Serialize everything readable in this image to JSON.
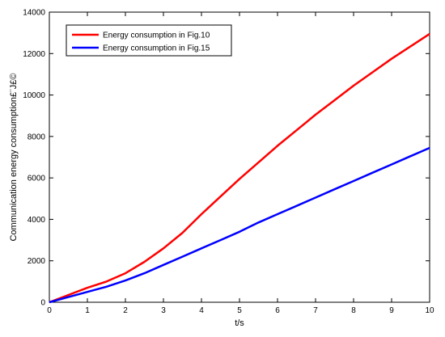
{
  "chart_data": {
    "type": "line",
    "title": "",
    "xlabel": "t/s",
    "ylabel": "Communication energy consumption£¨J£©",
    "xlim": [
      0,
      10
    ],
    "ylim": [
      0,
      14000
    ],
    "xticks": [
      0,
      1,
      2,
      3,
      4,
      5,
      6,
      7,
      8,
      9,
      10
    ],
    "yticks": [
      0,
      2000,
      4000,
      6000,
      8000,
      10000,
      12000,
      14000
    ],
    "grid": false,
    "legend_position": "top-left",
    "series": [
      {
        "name": "Energy consumption in Fig.10",
        "color": "#ff0000",
        "x": [
          0,
          0.5,
          1,
          1.5,
          2,
          2.5,
          3,
          3.5,
          4,
          4.5,
          5,
          5.5,
          6,
          6.5,
          7,
          7.5,
          8,
          8.5,
          9,
          9.5,
          10
        ],
        "y": [
          0,
          350,
          700,
          1000,
          1400,
          1950,
          2600,
          3350,
          4250,
          5100,
          5950,
          6750,
          7550,
          8300,
          9050,
          9750,
          10450,
          11100,
          11750,
          12350,
          12950
        ]
      },
      {
        "name": "Energy consumption in Fig.15",
        "color": "#0000ff",
        "x": [
          0,
          0.5,
          1,
          1.5,
          2,
          2.5,
          3,
          3.5,
          4,
          4.5,
          5,
          5.5,
          6,
          6.5,
          7,
          7.5,
          8,
          8.5,
          9,
          9.5,
          10
        ],
        "y": [
          0,
          250,
          500,
          750,
          1050,
          1400,
          1800,
          2200,
          2600,
          3000,
          3400,
          3850,
          4250,
          4650,
          5050,
          5450,
          5850,
          6250,
          6650,
          7050,
          7450
        ]
      }
    ]
  }
}
